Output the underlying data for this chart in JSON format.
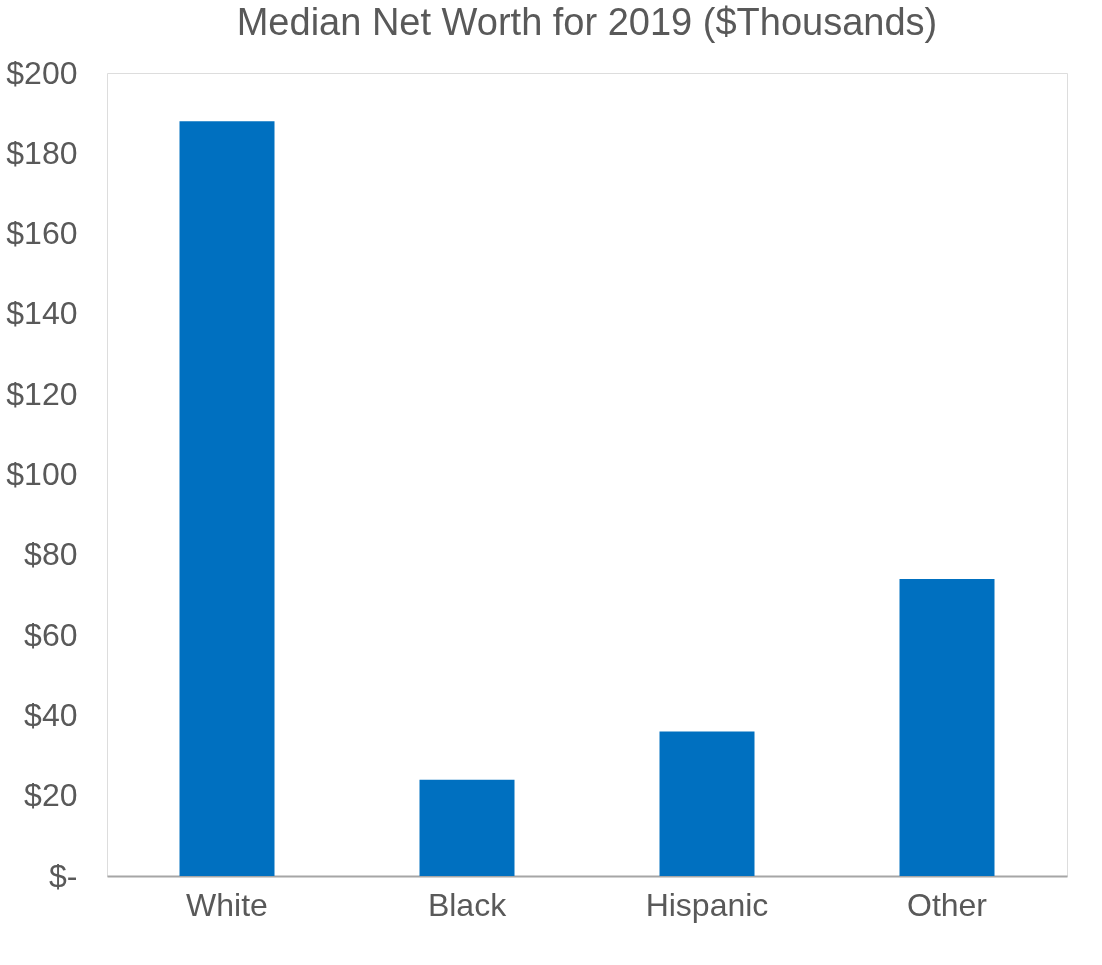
{
  "chart_data": {
    "type": "bar",
    "title": "Median Net Worth for 2019 ($Thousands)",
    "categories": [
      "White",
      "Black",
      "Hispanic",
      "Other"
    ],
    "values": [
      188,
      24,
      36,
      74
    ],
    "color": "#0070c0",
    "ylim": [
      0,
      200
    ],
    "yticks": [
      {
        "value": 0,
        "label": "$-"
      },
      {
        "value": 20,
        "label": "$20"
      },
      {
        "value": 40,
        "label": "$40"
      },
      {
        "value": 60,
        "label": "$60"
      },
      {
        "value": 80,
        "label": "$80"
      },
      {
        "value": 100,
        "label": "$100"
      },
      {
        "value": 120,
        "label": "$120"
      },
      {
        "value": 140,
        "label": "$140"
      },
      {
        "value": 160,
        "label": "$160"
      },
      {
        "value": 180,
        "label": "$180"
      },
      {
        "value": 200,
        "label": "$200"
      }
    ],
    "grid": false,
    "legend": false
  }
}
